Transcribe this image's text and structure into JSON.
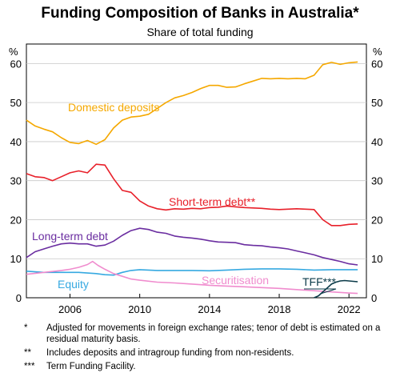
{
  "title": "Funding Composition of Banks in Australia*",
  "subtitle": "Share of total funding",
  "notes": [
    {
      "mark": "*",
      "text": "Adjusted for movements in foreign exchange rates; tenor of debt is estimated on a residual maturity basis."
    },
    {
      "mark": "**",
      "text": "Includes deposits and intragroup funding from non-residents."
    },
    {
      "mark": "***",
      "text": "Term Funding Facility."
    }
  ],
  "chart_data": {
    "type": "line",
    "ylabel_left": "%",
    "ylabel_right": "%",
    "ylim": [
      0,
      65
    ],
    "yticks": [
      0,
      10,
      20,
      30,
      40,
      50,
      60
    ],
    "xlim": [
      2003.5,
      2023.0
    ],
    "xticks": [
      2006,
      2010,
      2014,
      2018,
      2022
    ],
    "grid": true,
    "series": [
      {
        "name": "Domestic deposits",
        "color": "#f5a800",
        "x": [
          2003.5,
          2004.0,
          2004.5,
          2005.0,
          2005.5,
          2006.0,
          2006.5,
          2007.0,
          2007.5,
          2008.0,
          2008.5,
          2009.0,
          2009.5,
          2010.0,
          2010.5,
          2011.0,
          2011.5,
          2012.0,
          2012.5,
          2013.0,
          2013.5,
          2014.0,
          2014.5,
          2015.0,
          2015.5,
          2016.0,
          2016.5,
          2017.0,
          2017.5,
          2018.0,
          2018.5,
          2019.0,
          2019.5,
          2020.0,
          2020.5,
          2021.0,
          2021.5,
          2022.0,
          2022.5
        ],
        "y": [
          45.5,
          44,
          43.2,
          42.5,
          41,
          39.8,
          39.5,
          40.3,
          39.3,
          40.5,
          43.5,
          45.5,
          46.3,
          46.5,
          47,
          48.5,
          50,
          51.2,
          51.8,
          52.6,
          53.6,
          54.4,
          54.4,
          53.9,
          54,
          54.8,
          55.5,
          56.2,
          56.1,
          56.2,
          56.1,
          56.2,
          56.1,
          57,
          59.7,
          60.3,
          59.8,
          60.2,
          60.4
        ]
      },
      {
        "name": "Short-term debt**",
        "color": "#e8202a",
        "x": [
          2003.5,
          2004.0,
          2004.5,
          2005.0,
          2005.5,
          2006.0,
          2006.5,
          2007.0,
          2007.5,
          2008.0,
          2008.5,
          2009.0,
          2009.5,
          2010.0,
          2010.5,
          2011.0,
          2011.5,
          2012.0,
          2012.5,
          2013.0,
          2013.5,
          2014.0,
          2014.5,
          2015.0,
          2015.5,
          2016.0,
          2016.5,
          2017.0,
          2017.5,
          2018.0,
          2018.5,
          2019.0,
          2019.5,
          2020.0,
          2020.5,
          2021.0,
          2021.5,
          2022.0,
          2022.5
        ],
        "y": [
          31.8,
          31,
          30.8,
          30,
          31,
          32,
          32.5,
          32,
          34.2,
          34,
          30.5,
          27.5,
          27,
          24.8,
          23.5,
          22.8,
          22.5,
          22.8,
          22.7,
          22.9,
          22.8,
          23.1,
          23.2,
          23.5,
          23.3,
          23.1,
          23,
          22.9,
          22.7,
          22.6,
          22.7,
          22.8,
          22.7,
          22.6,
          20,
          18.5,
          18.5,
          18.8,
          18.9
        ]
      },
      {
        "name": "Long-term debt",
        "color": "#6a2da0",
        "x": [
          2003.5,
          2004.0,
          2004.5,
          2005.0,
          2005.5,
          2006.0,
          2006.5,
          2007.0,
          2007.5,
          2008.0,
          2008.5,
          2009.0,
          2009.5,
          2010.0,
          2010.5,
          2011.0,
          2011.5,
          2012.0,
          2012.5,
          2013.0,
          2013.5,
          2014.0,
          2014.5,
          2015.0,
          2015.5,
          2016.0,
          2016.5,
          2017.0,
          2017.5,
          2018.0,
          2018.5,
          2019.0,
          2019.5,
          2020.0,
          2020.5,
          2021.0,
          2021.5,
          2022.0,
          2022.5
        ],
        "y": [
          10.3,
          11.8,
          12.5,
          13.2,
          13.8,
          14,
          13.8,
          13.8,
          13.2,
          13.5,
          14.5,
          16,
          17.2,
          17.8,
          17.5,
          16.8,
          16.5,
          15.8,
          15.5,
          15.3,
          15,
          14.6,
          14.3,
          14.2,
          14.1,
          13.6,
          13.4,
          13.3,
          13,
          12.8,
          12.5,
          12,
          11.5,
          11,
          10.3,
          9.8,
          9.3,
          8.7,
          8.4
        ]
      },
      {
        "name": "Equity",
        "color": "#36a9e1",
        "x": [
          2003.5,
          2004.5,
          2005.5,
          2006.5,
          2007.5,
          2008.0,
          2008.5,
          2009.0,
          2009.5,
          2010.0,
          2011.0,
          2012.0,
          2013.0,
          2014.0,
          2015.0,
          2016.0,
          2017.0,
          2018.0,
          2019.0,
          2020.0,
          2021.0,
          2022.0,
          2022.5
        ],
        "y": [
          6.8,
          6.5,
          6.5,
          6.5,
          6.2,
          5.9,
          5.8,
          6.5,
          7,
          7.2,
          7,
          7,
          7,
          6.9,
          7.1,
          7.3,
          7.4,
          7.4,
          7.3,
          7.1,
          7.2,
          7.2,
          7.2
        ]
      },
      {
        "name": "Securitisation",
        "color": "#f08cce",
        "x": [
          2003.5,
          2004.5,
          2005.5,
          2006.0,
          2006.5,
          2007.0,
          2007.3,
          2007.6,
          2008.0,
          2008.5,
          2009.0,
          2009.5,
          2010.0,
          2011.0,
          2012.0,
          2013.0,
          2014.0,
          2015.0,
          2016.0,
          2017.0,
          2018.0,
          2019.0,
          2020.0,
          2021.0,
          2022.0,
          2022.5
        ],
        "y": [
          6,
          6.5,
          7,
          7.3,
          7.8,
          8.5,
          9.3,
          8.3,
          7.3,
          6.2,
          5.5,
          4.8,
          4.5,
          4,
          3.8,
          3.5,
          3.2,
          3,
          2.8,
          2.6,
          2.4,
          2.1,
          1.8,
          1.5,
          1.2,
          1.1
        ]
      },
      {
        "name": "TFF***",
        "color": "#0a3a48",
        "x": [
          2020.0,
          2020.25,
          2020.5,
          2020.75,
          2021.0,
          2021.25,
          2021.5,
          2021.75,
          2022.0,
          2022.25,
          2022.5
        ],
        "y": [
          0,
          0.5,
          1.5,
          2.5,
          3.5,
          4.0,
          4.3,
          4.4,
          4.3,
          4.2,
          4.1
        ]
      }
    ]
  }
}
